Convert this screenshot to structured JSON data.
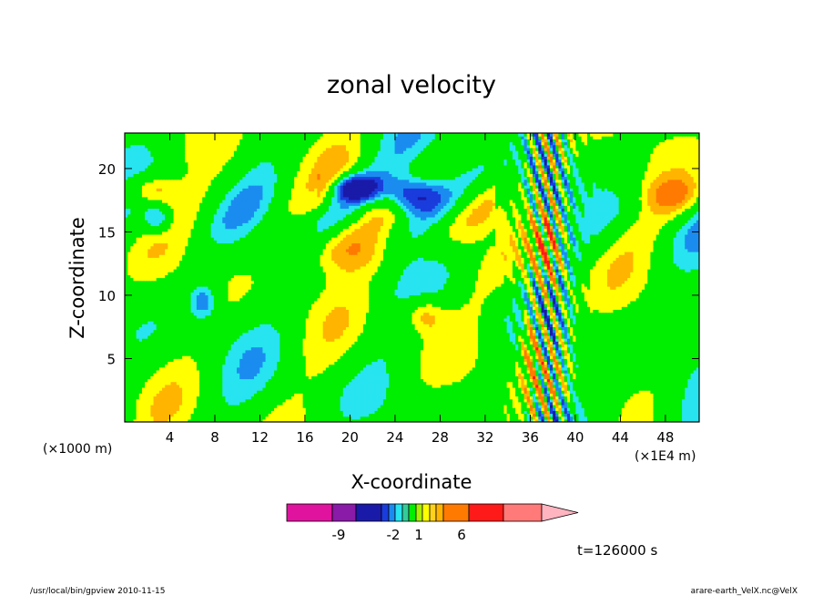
{
  "chart_data": {
    "type": "heatmap",
    "title": "zonal velocity",
    "xlabel": "X-coordinate",
    "ylabel": "Z-coordinate",
    "x_unit_left": "(×1000 m)",
    "x_unit_right": "(×1E4 m)",
    "xlim": [
      0,
      51
    ],
    "ylim": [
      0,
      22.8
    ],
    "xticks": [
      "4",
      "8",
      "12",
      "16",
      "20",
      "24",
      "28",
      "32",
      "36",
      "40",
      "44",
      "48"
    ],
    "yticks": [
      "5",
      "10",
      "15",
      "20"
    ],
    "x_tick_values": [
      4,
      8,
      12,
      16,
      20,
      24,
      28,
      32,
      36,
      40,
      44,
      48
    ],
    "y_tick_values": [
      5,
      10,
      15,
      20
    ],
    "colorbar": {
      "labels": [
        "-9",
        "-2",
        "1",
        "6"
      ],
      "colors": [
        "#e0139e",
        "#8a1aa8",
        "#1a1aa8",
        "#1a3cdc",
        "#1a8cf0",
        "#27e4f0",
        "#33cc99",
        "#00ee00",
        "#a8f000",
        "#ffff00",
        "#ffd21a",
        "#ffb400",
        "#ff7a00",
        "#ff1a1a",
        "#ff7a78",
        "#ffb4c0"
      ]
    },
    "time_label": "t=126000 s",
    "features": [
      {
        "x": 2.5,
        "z": 18.3,
        "rx": 2.2,
        "rz": 1.2,
        "level": "orange"
      },
      {
        "x": 3.0,
        "z": 16.0,
        "rx": 1.2,
        "rz": 1.2,
        "level": "cyan"
      },
      {
        "x": 20.5,
        "z": 18.5,
        "rx": 2.0,
        "rz": 1.0,
        "level": "blue"
      },
      {
        "x": 25.5,
        "z": 18.0,
        "rx": 2.5,
        "rz": 1.5,
        "level": "blue"
      },
      {
        "x": 37.5,
        "z": 13.0,
        "rx": 1.2,
        "rz": 3.0,
        "level": "orange"
      },
      {
        "x": 36.0,
        "z": 6.5,
        "rx": 1.0,
        "rz": 3.0,
        "level": "orange"
      },
      {
        "x": 48.5,
        "z": 18.0,
        "rx": 2.5,
        "rz": 1.5,
        "level": "orange"
      },
      {
        "x": 7.0,
        "z": 9.5,
        "rx": 1.2,
        "rz": 1.5,
        "level": "cyan"
      },
      {
        "x": 26.5,
        "z": 8.5,
        "rx": 1.8,
        "rz": 1.5,
        "level": "orange"
      },
      {
        "x": 20.0,
        "z": 13.5,
        "rx": 3.5,
        "rz": 2.0,
        "level": "orange"
      }
    ]
  },
  "footer": {
    "left": "/usr/local/bin/gpview 2010-11-15",
    "right": "arare-earth_VelX.nc@VelX"
  }
}
